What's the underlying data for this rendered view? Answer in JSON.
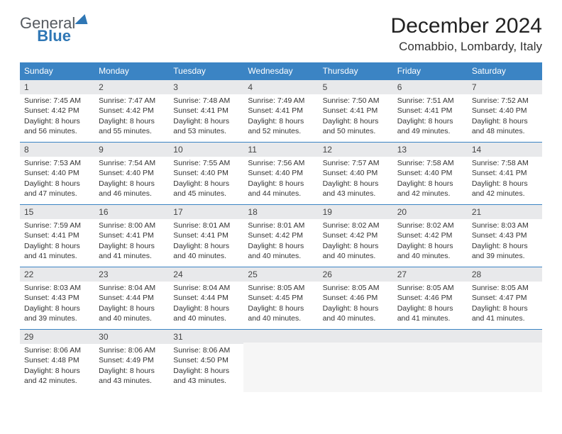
{
  "brand": {
    "part1": "General",
    "part2": "Blue"
  },
  "title": "December 2024",
  "location": "Comabbio, Lombardy, Italy",
  "colors": {
    "header_bg": "#3b84c4",
    "header_text": "#ffffff",
    "daynum_bg": "#e8e9eb",
    "row_border": "#3b84c4",
    "brand_accent": "#2f77b5"
  },
  "day_headers": [
    "Sunday",
    "Monday",
    "Tuesday",
    "Wednesday",
    "Thursday",
    "Friday",
    "Saturday"
  ],
  "weeks": [
    [
      {
        "num": "1",
        "sunrise": "Sunrise: 7:45 AM",
        "sunset": "Sunset: 4:42 PM",
        "dl1": "Daylight: 8 hours",
        "dl2": "and 56 minutes."
      },
      {
        "num": "2",
        "sunrise": "Sunrise: 7:47 AM",
        "sunset": "Sunset: 4:42 PM",
        "dl1": "Daylight: 8 hours",
        "dl2": "and 55 minutes."
      },
      {
        "num": "3",
        "sunrise": "Sunrise: 7:48 AM",
        "sunset": "Sunset: 4:41 PM",
        "dl1": "Daylight: 8 hours",
        "dl2": "and 53 minutes."
      },
      {
        "num": "4",
        "sunrise": "Sunrise: 7:49 AM",
        "sunset": "Sunset: 4:41 PM",
        "dl1": "Daylight: 8 hours",
        "dl2": "and 52 minutes."
      },
      {
        "num": "5",
        "sunrise": "Sunrise: 7:50 AM",
        "sunset": "Sunset: 4:41 PM",
        "dl1": "Daylight: 8 hours",
        "dl2": "and 50 minutes."
      },
      {
        "num": "6",
        "sunrise": "Sunrise: 7:51 AM",
        "sunset": "Sunset: 4:41 PM",
        "dl1": "Daylight: 8 hours",
        "dl2": "and 49 minutes."
      },
      {
        "num": "7",
        "sunrise": "Sunrise: 7:52 AM",
        "sunset": "Sunset: 4:40 PM",
        "dl1": "Daylight: 8 hours",
        "dl2": "and 48 minutes."
      }
    ],
    [
      {
        "num": "8",
        "sunrise": "Sunrise: 7:53 AM",
        "sunset": "Sunset: 4:40 PM",
        "dl1": "Daylight: 8 hours",
        "dl2": "and 47 minutes."
      },
      {
        "num": "9",
        "sunrise": "Sunrise: 7:54 AM",
        "sunset": "Sunset: 4:40 PM",
        "dl1": "Daylight: 8 hours",
        "dl2": "and 46 minutes."
      },
      {
        "num": "10",
        "sunrise": "Sunrise: 7:55 AM",
        "sunset": "Sunset: 4:40 PM",
        "dl1": "Daylight: 8 hours",
        "dl2": "and 45 minutes."
      },
      {
        "num": "11",
        "sunrise": "Sunrise: 7:56 AM",
        "sunset": "Sunset: 4:40 PM",
        "dl1": "Daylight: 8 hours",
        "dl2": "and 44 minutes."
      },
      {
        "num": "12",
        "sunrise": "Sunrise: 7:57 AM",
        "sunset": "Sunset: 4:40 PM",
        "dl1": "Daylight: 8 hours",
        "dl2": "and 43 minutes."
      },
      {
        "num": "13",
        "sunrise": "Sunrise: 7:58 AM",
        "sunset": "Sunset: 4:40 PM",
        "dl1": "Daylight: 8 hours",
        "dl2": "and 42 minutes."
      },
      {
        "num": "14",
        "sunrise": "Sunrise: 7:58 AM",
        "sunset": "Sunset: 4:41 PM",
        "dl1": "Daylight: 8 hours",
        "dl2": "and 42 minutes."
      }
    ],
    [
      {
        "num": "15",
        "sunrise": "Sunrise: 7:59 AM",
        "sunset": "Sunset: 4:41 PM",
        "dl1": "Daylight: 8 hours",
        "dl2": "and 41 minutes."
      },
      {
        "num": "16",
        "sunrise": "Sunrise: 8:00 AM",
        "sunset": "Sunset: 4:41 PM",
        "dl1": "Daylight: 8 hours",
        "dl2": "and 41 minutes."
      },
      {
        "num": "17",
        "sunrise": "Sunrise: 8:01 AM",
        "sunset": "Sunset: 4:41 PM",
        "dl1": "Daylight: 8 hours",
        "dl2": "and 40 minutes."
      },
      {
        "num": "18",
        "sunrise": "Sunrise: 8:01 AM",
        "sunset": "Sunset: 4:42 PM",
        "dl1": "Daylight: 8 hours",
        "dl2": "and 40 minutes."
      },
      {
        "num": "19",
        "sunrise": "Sunrise: 8:02 AM",
        "sunset": "Sunset: 4:42 PM",
        "dl1": "Daylight: 8 hours",
        "dl2": "and 40 minutes."
      },
      {
        "num": "20",
        "sunrise": "Sunrise: 8:02 AM",
        "sunset": "Sunset: 4:42 PM",
        "dl1": "Daylight: 8 hours",
        "dl2": "and 40 minutes."
      },
      {
        "num": "21",
        "sunrise": "Sunrise: 8:03 AM",
        "sunset": "Sunset: 4:43 PM",
        "dl1": "Daylight: 8 hours",
        "dl2": "and 39 minutes."
      }
    ],
    [
      {
        "num": "22",
        "sunrise": "Sunrise: 8:03 AM",
        "sunset": "Sunset: 4:43 PM",
        "dl1": "Daylight: 8 hours",
        "dl2": "and 39 minutes."
      },
      {
        "num": "23",
        "sunrise": "Sunrise: 8:04 AM",
        "sunset": "Sunset: 4:44 PM",
        "dl1": "Daylight: 8 hours",
        "dl2": "and 40 minutes."
      },
      {
        "num": "24",
        "sunrise": "Sunrise: 8:04 AM",
        "sunset": "Sunset: 4:44 PM",
        "dl1": "Daylight: 8 hours",
        "dl2": "and 40 minutes."
      },
      {
        "num": "25",
        "sunrise": "Sunrise: 8:05 AM",
        "sunset": "Sunset: 4:45 PM",
        "dl1": "Daylight: 8 hours",
        "dl2": "and 40 minutes."
      },
      {
        "num": "26",
        "sunrise": "Sunrise: 8:05 AM",
        "sunset": "Sunset: 4:46 PM",
        "dl1": "Daylight: 8 hours",
        "dl2": "and 40 minutes."
      },
      {
        "num": "27",
        "sunrise": "Sunrise: 8:05 AM",
        "sunset": "Sunset: 4:46 PM",
        "dl1": "Daylight: 8 hours",
        "dl2": "and 41 minutes."
      },
      {
        "num": "28",
        "sunrise": "Sunrise: 8:05 AM",
        "sunset": "Sunset: 4:47 PM",
        "dl1": "Daylight: 8 hours",
        "dl2": "and 41 minutes."
      }
    ],
    [
      {
        "num": "29",
        "sunrise": "Sunrise: 8:06 AM",
        "sunset": "Sunset: 4:48 PM",
        "dl1": "Daylight: 8 hours",
        "dl2": "and 42 minutes."
      },
      {
        "num": "30",
        "sunrise": "Sunrise: 8:06 AM",
        "sunset": "Sunset: 4:49 PM",
        "dl1": "Daylight: 8 hours",
        "dl2": "and 43 minutes."
      },
      {
        "num": "31",
        "sunrise": "Sunrise: 8:06 AM",
        "sunset": "Sunset: 4:50 PM",
        "dl1": "Daylight: 8 hours",
        "dl2": "and 43 minutes."
      },
      null,
      null,
      null,
      null
    ]
  ]
}
